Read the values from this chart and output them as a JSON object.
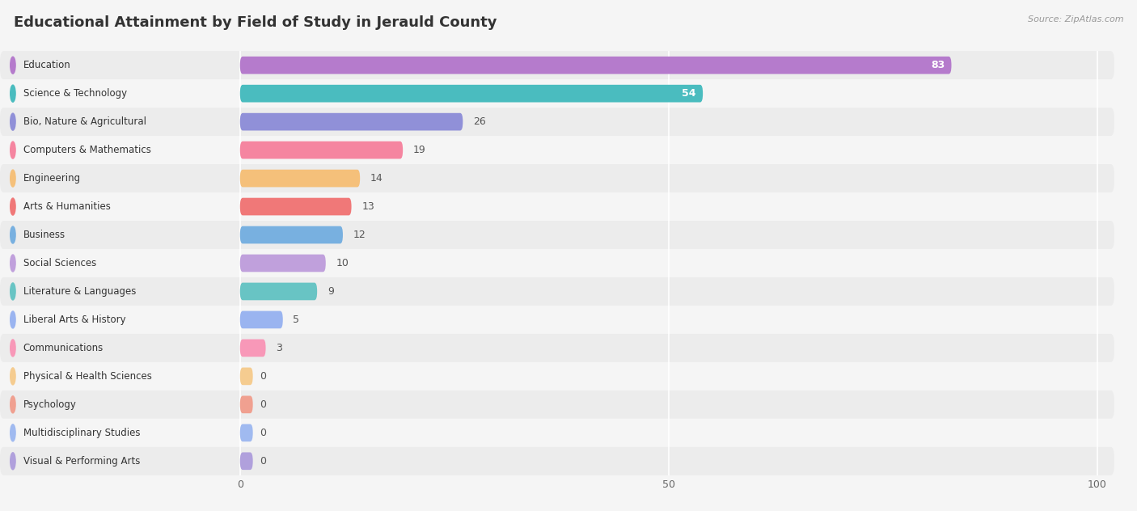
{
  "title": "Educational Attainment by Field of Study in Jerauld County",
  "source": "Source: ZipAtlas.com",
  "categories": [
    "Education",
    "Science & Technology",
    "Bio, Nature & Agricultural",
    "Computers & Mathematics",
    "Engineering",
    "Arts & Humanities",
    "Business",
    "Social Sciences",
    "Literature & Languages",
    "Liberal Arts & History",
    "Communications",
    "Physical & Health Sciences",
    "Psychology",
    "Multidisciplinary Studies",
    "Visual & Performing Arts"
  ],
  "values": [
    83,
    54,
    26,
    19,
    14,
    13,
    12,
    10,
    9,
    5,
    3,
    0,
    0,
    0,
    0
  ],
  "bar_colors": [
    "#b57bcc",
    "#4abcbf",
    "#9090d8",
    "#f585a0",
    "#f5c07a",
    "#f07878",
    "#78b0e0",
    "#c0a0dc",
    "#68c4c4",
    "#9ab4f0",
    "#f898b8",
    "#f5cc90",
    "#f0a090",
    "#a0baf0",
    "#b0a0dc"
  ],
  "xlim_data": [
    0,
    100
  ],
  "xticks": [
    0,
    50,
    100
  ],
  "bg_color": "#f5f5f5",
  "row_bg_even": "#ececec",
  "row_bg_odd": "#f5f5f5",
  "title_fontsize": 13,
  "label_fontsize": 8.5,
  "value_fontsize": 9
}
